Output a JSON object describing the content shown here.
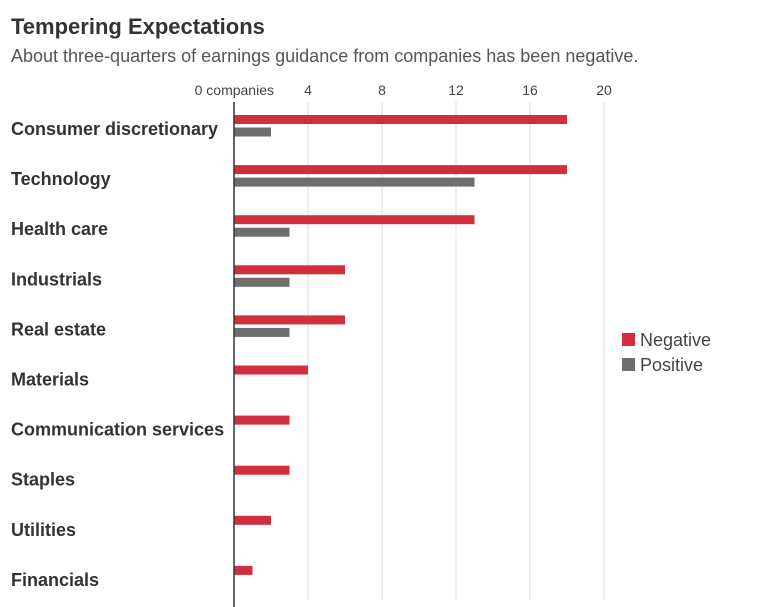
{
  "title": "Tempering Expectations",
  "subtitle": "About three-quarters of earnings guidance from companies has been negative.",
  "chart_data": {
    "type": "bar",
    "orientation": "horizontal",
    "title": "Tempering Expectations",
    "subtitle": "About three-quarters of earnings guidance from companies has been negative.",
    "xlabel": "",
    "ylabel": "",
    "categories": [
      "Consumer discretionary",
      "Technology",
      "Health care",
      "Industrials",
      "Real estate",
      "Materials",
      "Communication services",
      "Staples",
      "Utilities",
      "Financials"
    ],
    "series": [
      {
        "name": "Negative",
        "color": "#d12f3b",
        "values": [
          18,
          18,
          13,
          6,
          6,
          4,
          3,
          3,
          2,
          1
        ]
      },
      {
        "name": "Positive",
        "color": "#6e6e6e",
        "values": [
          2,
          13,
          3,
          3,
          3,
          0,
          0,
          0,
          0,
          0
        ]
      }
    ],
    "ticks": [
      {
        "value": 0,
        "label": "0 companies"
      },
      {
        "value": 4,
        "label": "4"
      },
      {
        "value": 8,
        "label": "8"
      },
      {
        "value": 12,
        "label": "12"
      },
      {
        "value": 16,
        "label": "16"
      },
      {
        "value": 20,
        "label": "20"
      }
    ],
    "xlim": [
      0,
      20
    ],
    "grid": true,
    "legend_position": "right"
  }
}
